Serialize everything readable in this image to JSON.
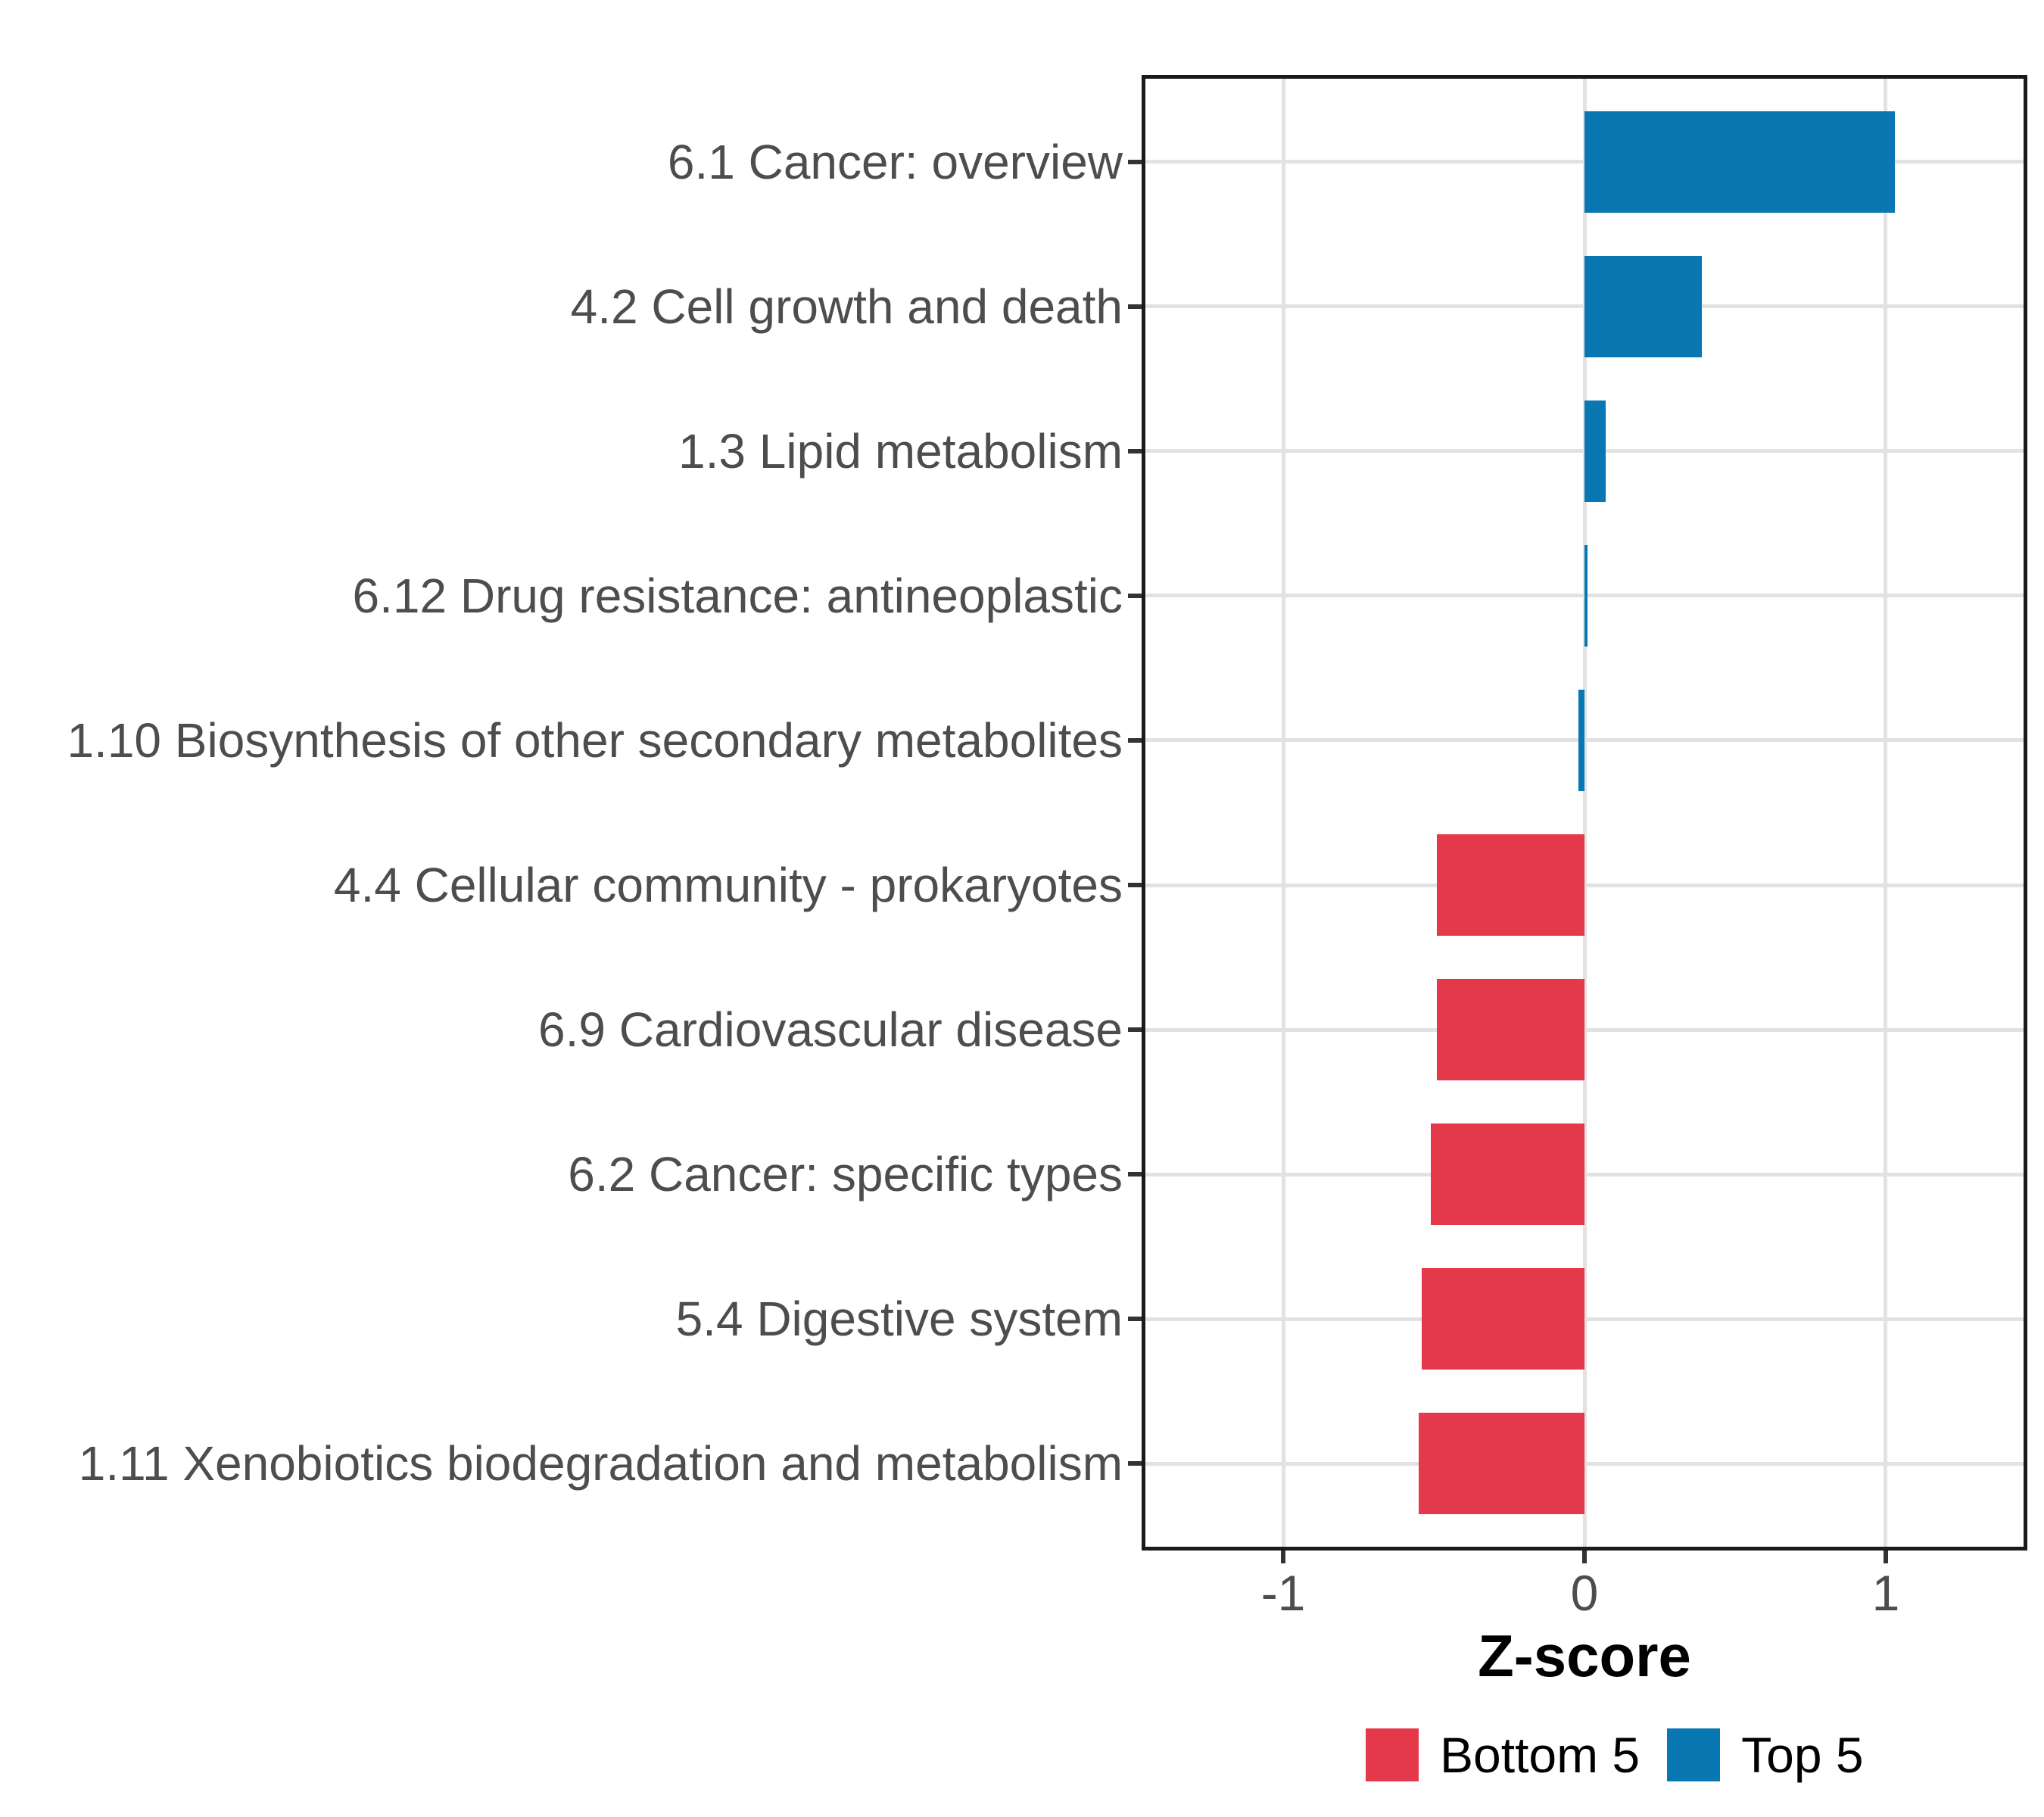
{
  "figure": {
    "background": "#ffffff"
  },
  "chart_data": {
    "type": "bar",
    "orientation": "horizontal",
    "title": "",
    "xlabel": "Z-score",
    "ylabel": "",
    "xlim": [
      -1.47,
      1.47
    ],
    "x_ticks": [
      -1,
      0,
      1
    ],
    "x_tick_labels": [
      "-1",
      "0",
      "1"
    ],
    "grid": true,
    "legend_position": "bottom",
    "bar_width_fraction": 0.7,
    "bars": [
      {
        "label": "6.1 Cancer: overview",
        "value": 1.03,
        "group": "Top 5"
      },
      {
        "label": "4.2 Cell growth and death",
        "value": 0.39,
        "group": "Top 5"
      },
      {
        "label": "1.3 Lipid metabolism",
        "value": 0.07,
        "group": "Top 5"
      },
      {
        "label": "6.12 Drug resistance: antineoplastic",
        "value": 0.01,
        "group": "Top 5"
      },
      {
        "label": "1.10 Biosynthesis of other secondary metabolites",
        "value": -0.02,
        "group": "Top 5"
      },
      {
        "label": "4.4 Cellular community - prokaryotes",
        "value": -0.49,
        "group": "Bottom 5"
      },
      {
        "label": "6.9 Cardiovascular disease",
        "value": -0.49,
        "group": "Bottom 5"
      },
      {
        "label": "6.2 Cancer: specific types",
        "value": -0.51,
        "group": "Bottom 5"
      },
      {
        "label": "5.4 Digestive system",
        "value": -0.54,
        "group": "Bottom 5"
      },
      {
        "label": "1.11 Xenobiotics biodegradation and metabolism",
        "value": -0.55,
        "group": "Bottom 5"
      }
    ],
    "legend": [
      {
        "label": "Bottom 5",
        "color": "#E4394B"
      },
      {
        "label": "Top 5",
        "color": "#0877B2"
      }
    ]
  },
  "colors": {
    "top5": "#0877B2",
    "bottom5": "#E4394B",
    "gridline": "#E2E2E2",
    "axis_text": "#4D4D4D",
    "panel_border": "#1A1A1A",
    "tick_mark": "#333333"
  }
}
